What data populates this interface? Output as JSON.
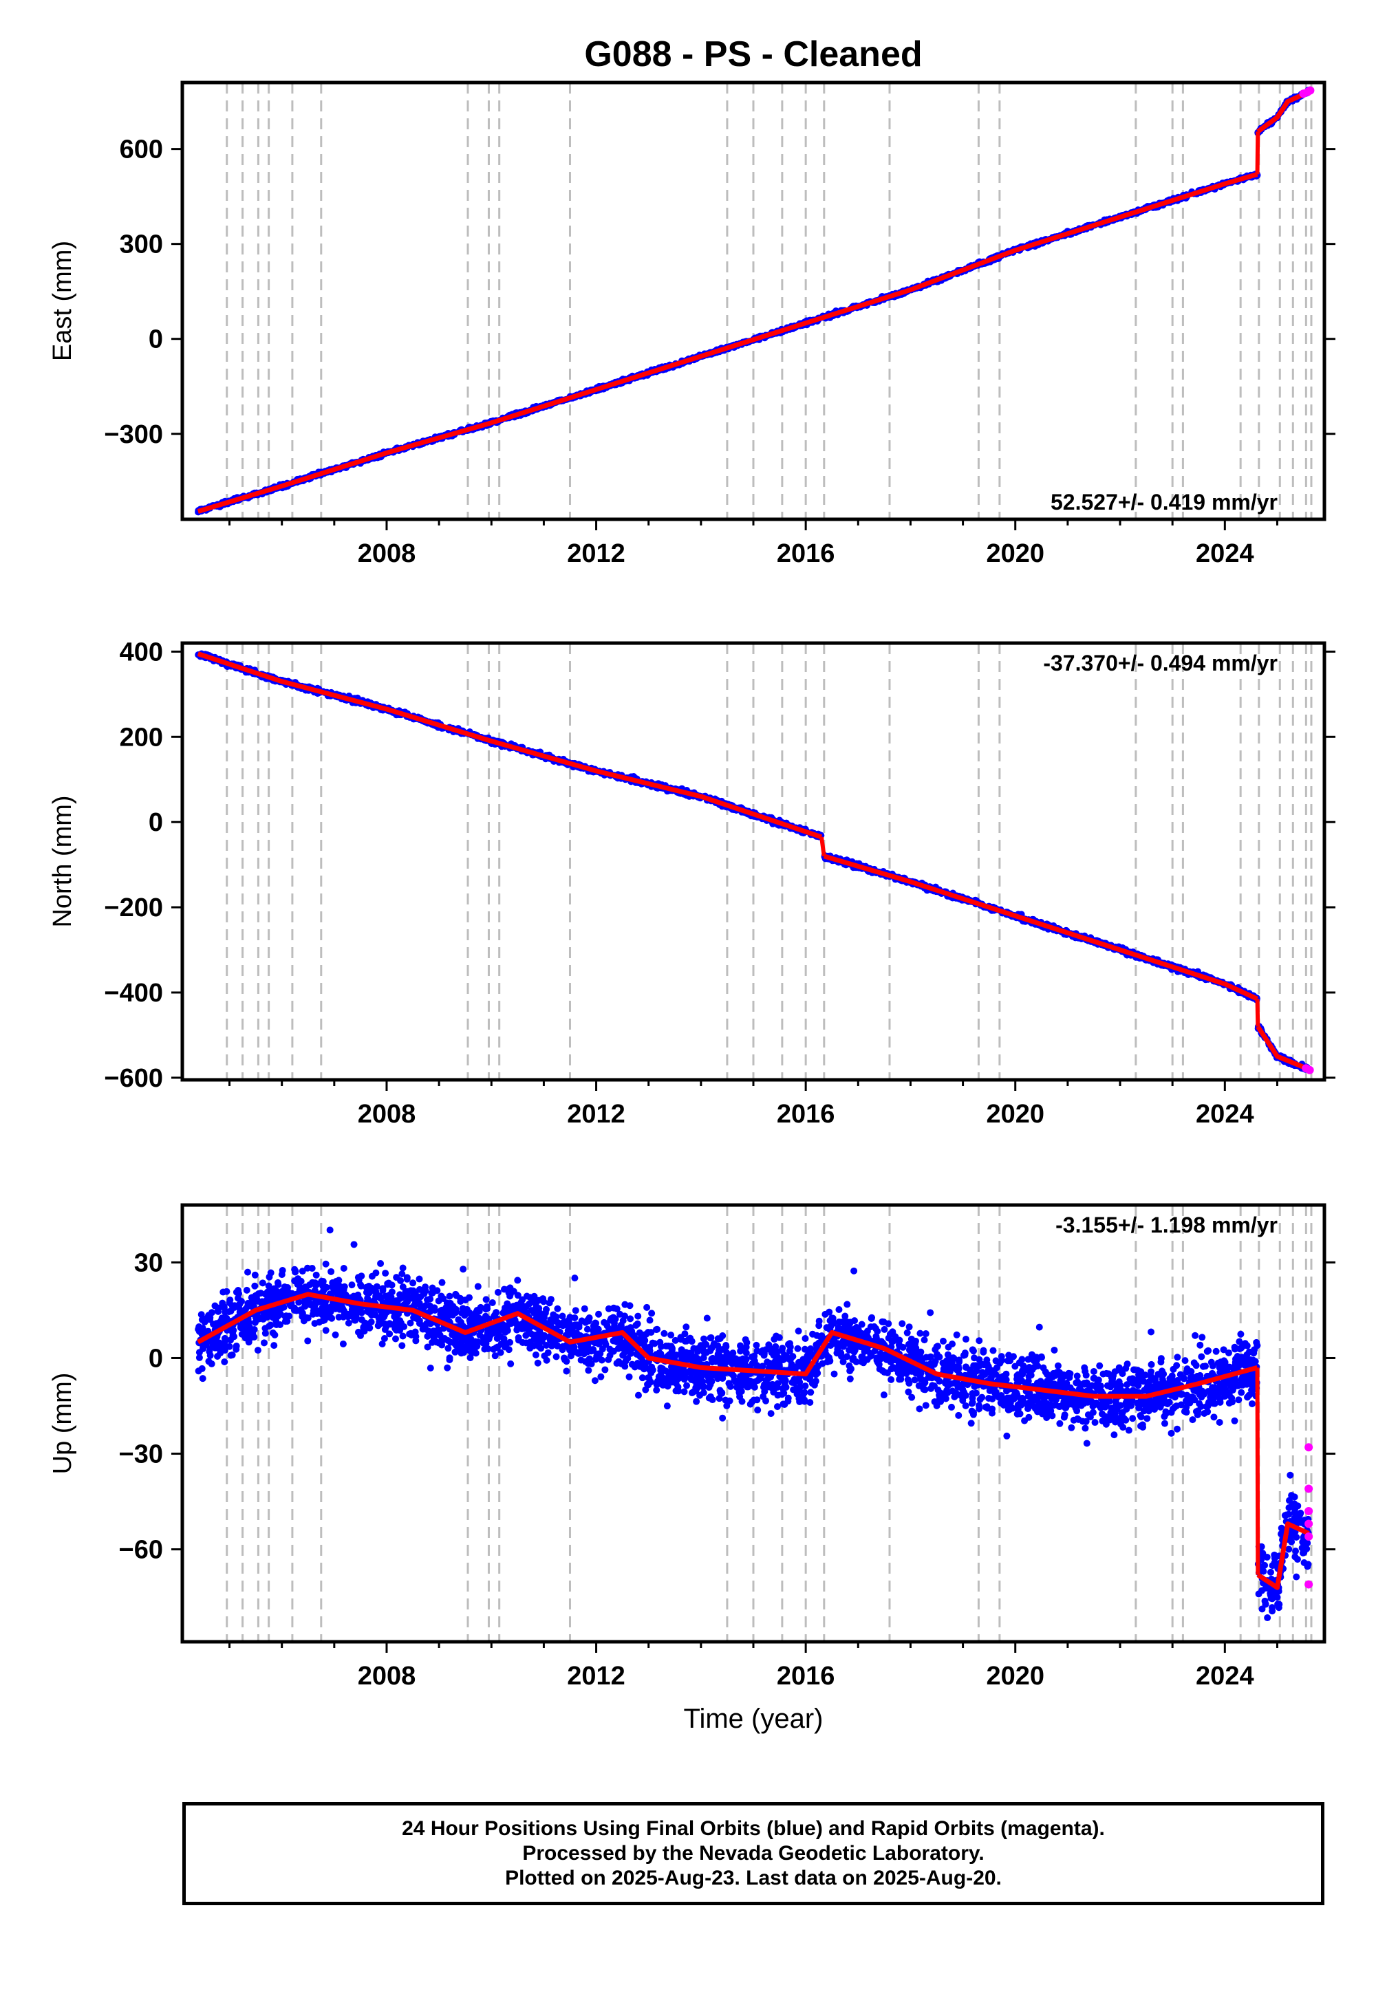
{
  "title": "G088  - PS - Cleaned",
  "xlabel": "Time (year)",
  "colors": {
    "final": "#0000ff",
    "rapid": "#ff00ff",
    "model": "#ff0000",
    "break": "#bdbdbd"
  },
  "footer": {
    "line1": "24 Hour Positions Using Final Orbits (blue) and Rapid Orbits (magenta).",
    "line2": "Processed by the Nevada Geodetic Laboratory.",
    "line3": "Plotted on 2025-Aug-23. Last data on 2025-Aug-20."
  },
  "breaks": [
    2004.95,
    2005.25,
    2005.55,
    2005.75,
    2006.2,
    2006.75,
    2009.55,
    2009.95,
    2010.15,
    2011.5,
    2014.5,
    2015.0,
    2015.55,
    2016.0,
    2016.35,
    2017.6,
    2019.3,
    2019.7,
    2022.3,
    2023.0,
    2023.2,
    2024.3,
    2024.65,
    2025.05,
    2025.3,
    2025.55,
    2025.65
  ],
  "chart_data": [
    {
      "type": "scatter",
      "ylabel": "East (mm)",
      "rate_label": "52.527+/- 0.419 mm/yr",
      "xlim": [
        2004.1,
        2025.9
      ],
      "ylim": [
        -570,
        810
      ],
      "xticks": [
        2008,
        2012,
        2016,
        2020,
        2024
      ],
      "yticks": [
        -300,
        0,
        300,
        600
      ],
      "series": [
        {
          "role": "final",
          "x": [
            2004.4,
            2006,
            2008,
            2010,
            2012,
            2014,
            2016,
            2018,
            2020,
            2022,
            2024,
            2024.62
          ],
          "y": [
            -545,
            -465,
            -360,
            -265,
            -160,
            -55,
            50,
            155,
            280,
            385,
            490,
            520
          ]
        },
        {
          "role": "final",
          "x": [
            2024.63,
            2025.0,
            2025.2,
            2025.6
          ],
          "y": [
            655,
            700,
            750,
            780
          ]
        },
        {
          "role": "rapid",
          "x": [
            2025.5,
            2025.58,
            2025.63
          ],
          "y": [
            775,
            780,
            785
          ]
        }
      ]
    },
    {
      "type": "scatter",
      "ylabel": "North (mm)",
      "rate_label": "-37.370+/- 0.494 mm/yr",
      "xlim": [
        2004.1,
        2025.9
      ],
      "ylim": [
        -605,
        420
      ],
      "xticks": [
        2008,
        2012,
        2016,
        2020,
        2024
      ],
      "yticks": [
        -600,
        -400,
        -200,
        0,
        200,
        400
      ],
      "series": [
        {
          "role": "final",
          "x": [
            2004.4,
            2006,
            2008,
            2010,
            2012,
            2014,
            2016.3
          ],
          "y": [
            395,
            330,
            265,
            190,
            120,
            60,
            -35
          ]
        },
        {
          "role": "final",
          "x": [
            2016.35,
            2018,
            2020,
            2022,
            2024,
            2024.62
          ],
          "y": [
            -80,
            -140,
            -220,
            -300,
            -380,
            -415
          ]
        },
        {
          "role": "final",
          "x": [
            2024.63,
            2025.0,
            2025.6
          ],
          "y": [
            -480,
            -550,
            -580
          ]
        },
        {
          "role": "rapid",
          "x": [
            2025.55,
            2025.62
          ],
          "y": [
            -578,
            -582
          ]
        }
      ]
    },
    {
      "type": "scatter",
      "ylabel": "Up (mm)",
      "rate_label": "-3.155+/- 1.198 mm/yr",
      "xlim": [
        2004.1,
        2025.9
      ],
      "ylim": [
        -89,
        48
      ],
      "xticks": [
        2008,
        2012,
        2016,
        2020,
        2024
      ],
      "yticks": [
        -60,
        -30,
        0,
        30
      ],
      "series": [
        {
          "role": "final",
          "x": [
            2004.4,
            2005.5,
            2006.5,
            2007.5,
            2008.5,
            2009.5,
            2010.5,
            2011.5,
            2012.5,
            2013.0,
            2014.0,
            2015.0,
            2016.0,
            2016.5,
            2017.5,
            2018.5,
            2019.5,
            2020.5,
            2021.5,
            2022.5,
            2023.5,
            2024.62
          ],
          "y": [
            5,
            15,
            20,
            17,
            15,
            8,
            14,
            5,
            8,
            0,
            -3,
            -4,
            -5,
            8,
            3,
            -5,
            -8,
            -10,
            -12,
            -12,
            -8,
            -3
          ]
        },
        {
          "role": "final",
          "x": [
            2024.63,
            2025.0,
            2025.2,
            2025.6
          ],
          "y": [
            -68,
            -72,
            -52,
            -55
          ]
        },
        {
          "role": "rapid",
          "x": [
            2025.6,
            2025.6,
            2025.6,
            2025.6,
            2025.6,
            2025.6
          ],
          "y": [
            -28,
            -41,
            -48,
            -52,
            -56,
            -71
          ]
        }
      ]
    }
  ]
}
